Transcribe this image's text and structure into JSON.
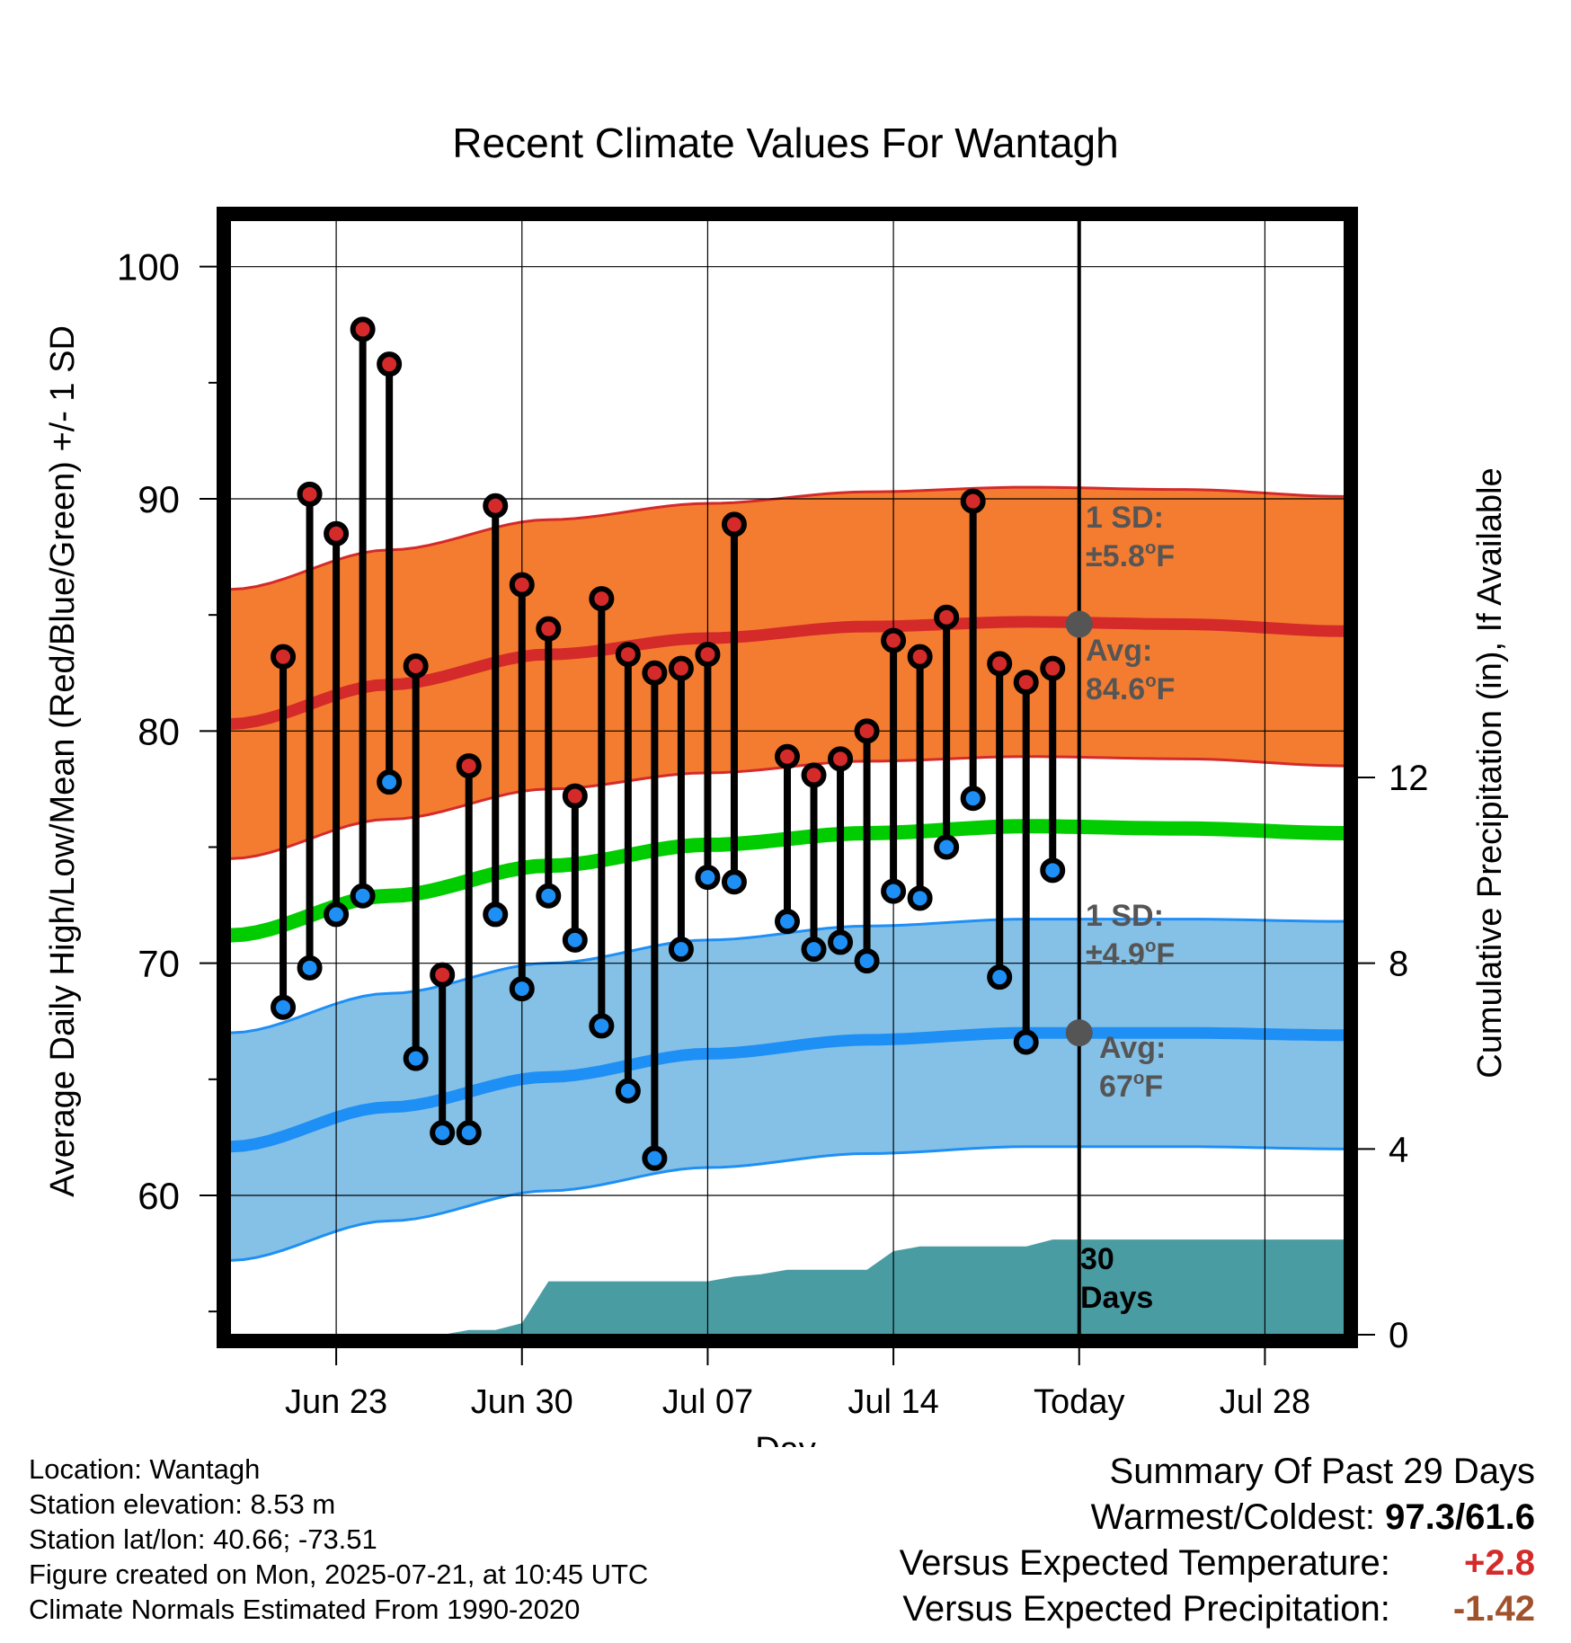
{
  "chart_data": {
    "type": "line",
    "title": "Recent Climate Values For Wantagh",
    "xlabel": "Day",
    "ylabel": "Average Daily High/Low/Mean (Red/Blue/Green) +/- 1 SD",
    "y2label": "Cumulative Precipitation (in), If Available",
    "ylim": [
      54,
      102
    ],
    "y2lim": [
      0,
      24
    ],
    "yticks": [
      60,
      70,
      80,
      90,
      100
    ],
    "y2ticks": [
      0,
      4,
      8,
      12
    ],
    "xlim": [
      "2025-06-19",
      "2025-07-31"
    ],
    "xticks": [
      {
        "date": "2025-06-23",
        "label": "Jun 23"
      },
      {
        "date": "2025-06-30",
        "label": "Jun 30"
      },
      {
        "date": "2025-07-07",
        "label": "Jul 07"
      },
      {
        "date": "2025-07-14",
        "label": "Jul 14"
      },
      {
        "date": "2025-07-21",
        "label": "Today"
      },
      {
        "date": "2025-07-28",
        "label": "Jul 28"
      }
    ],
    "grid": true,
    "today": "2025-07-21",
    "observed": {
      "dates": [
        "2025-06-21",
        "2025-06-22",
        "2025-06-23",
        "2025-06-24",
        "2025-06-25",
        "2025-06-26",
        "2025-06-27",
        "2025-06-28",
        "2025-06-29",
        "2025-06-30",
        "2025-07-01",
        "2025-07-02",
        "2025-07-03",
        "2025-07-04",
        "2025-07-05",
        "2025-07-06",
        "2025-07-07",
        "2025-07-08",
        "2025-07-10",
        "2025-07-11",
        "2025-07-12",
        "2025-07-13",
        "2025-07-14",
        "2025-07-15",
        "2025-07-16",
        "2025-07-17",
        "2025-07-18",
        "2025-07-19",
        "2025-07-20"
      ],
      "highs": [
        83.2,
        90.2,
        88.5,
        97.3,
        95.8,
        82.8,
        69.5,
        78.5,
        89.7,
        86.3,
        84.4,
        77.2,
        85.7,
        83.3,
        82.5,
        82.7,
        83.3,
        88.9,
        78.9,
        78.1,
        78.8,
        80.0,
        83.9,
        83.2,
        84.9,
        89.9,
        82.9,
        82.1,
        82.7
      ],
      "lows": [
        68.1,
        69.8,
        72.1,
        72.9,
        77.8,
        65.9,
        62.7,
        62.7,
        72.1,
        68.9,
        72.9,
        71.0,
        67.3,
        64.5,
        61.6,
        70.6,
        73.7,
        73.5,
        71.8,
        70.6,
        70.9,
        70.1,
        73.1,
        72.8,
        75.0,
        77.1,
        69.4,
        66.6,
        74.0
      ]
    },
    "normals": {
      "dates": [
        "2025-06-19",
        "2025-06-25",
        "2025-07-01",
        "2025-07-07",
        "2025-07-13",
        "2025-07-19",
        "2025-07-25",
        "2025-07-31"
      ],
      "high_avg": [
        80.3,
        82.0,
        83.3,
        84.0,
        84.5,
        84.7,
        84.6,
        84.3
      ],
      "high_sd": 5.8,
      "low_avg": [
        62.1,
        63.8,
        65.1,
        66.1,
        66.7,
        67.0,
        67.0,
        66.9
      ],
      "low_sd": 4.9,
      "mean_avg": [
        71.2,
        72.9,
        74.2,
        75.1,
        75.6,
        75.9,
        75.8,
        75.6
      ]
    },
    "precip_cumulative": {
      "dates": [
        "2025-06-19",
        "2025-06-27",
        "2025-06-28",
        "2025-06-29",
        "2025-06-30",
        "2025-07-01",
        "2025-07-07",
        "2025-07-08",
        "2025-07-09",
        "2025-07-10",
        "2025-07-13",
        "2025-07-14",
        "2025-07-15",
        "2025-07-19",
        "2025-07-20",
        "2025-07-21",
        "2025-07-31"
      ],
      "values": [
        0,
        0,
        0.1,
        0.1,
        0.25,
        1.15,
        1.15,
        1.25,
        1.3,
        1.4,
        1.4,
        1.8,
        1.9,
        1.9,
        2.05,
        2.05,
        2.05
      ]
    },
    "annotations": {
      "high_sd_label": "1 SD:",
      "high_sd_value": "±5.8°F",
      "high_avg_label": "Avg:",
      "high_avg_value": "84.6°F",
      "low_sd_label": "1 SD:",
      "low_sd_value": "±4.9°F",
      "low_avg_label": "Avg:",
      "low_avg_value": "67°F",
      "today_high_avg": 84.6,
      "today_low_avg": 67.0,
      "precip_label_line1": "30",
      "precip_label_line2": "Days"
    },
    "colors": {
      "high_band": "#f47c30",
      "high_line": "#d42a2a",
      "low_band": "#85c1e6",
      "low_line": "#1e8ff5",
      "mean_line": "#00cc00",
      "precip": "#4a9ca3",
      "high_dot": "#d42a2a",
      "low_dot": "#1e8ff5",
      "today_marker": "#555555"
    }
  },
  "footer": {
    "location": "Location: Wantagh",
    "elevation": "Station elevation: 8.53 m",
    "latlon": "Station lat/lon: 40.66; -73.51",
    "created": "Figure created on Mon, 2025-07-21, at 10:45 UTC",
    "normals": "Climate Normals Estimated From 1990-2020"
  },
  "summary": {
    "title": "Summary Of Past 29 Days",
    "warmest_label": "Warmest/Coldest:",
    "warmest_value": "97.3/61.6",
    "temp_label": "Versus Expected Temperature:",
    "temp_value": "+2.8",
    "temp_color": "#d42a2a",
    "precip_label": "Versus Expected Precipitation:",
    "precip_value": "-1.42",
    "precip_color": "#a0522d"
  }
}
